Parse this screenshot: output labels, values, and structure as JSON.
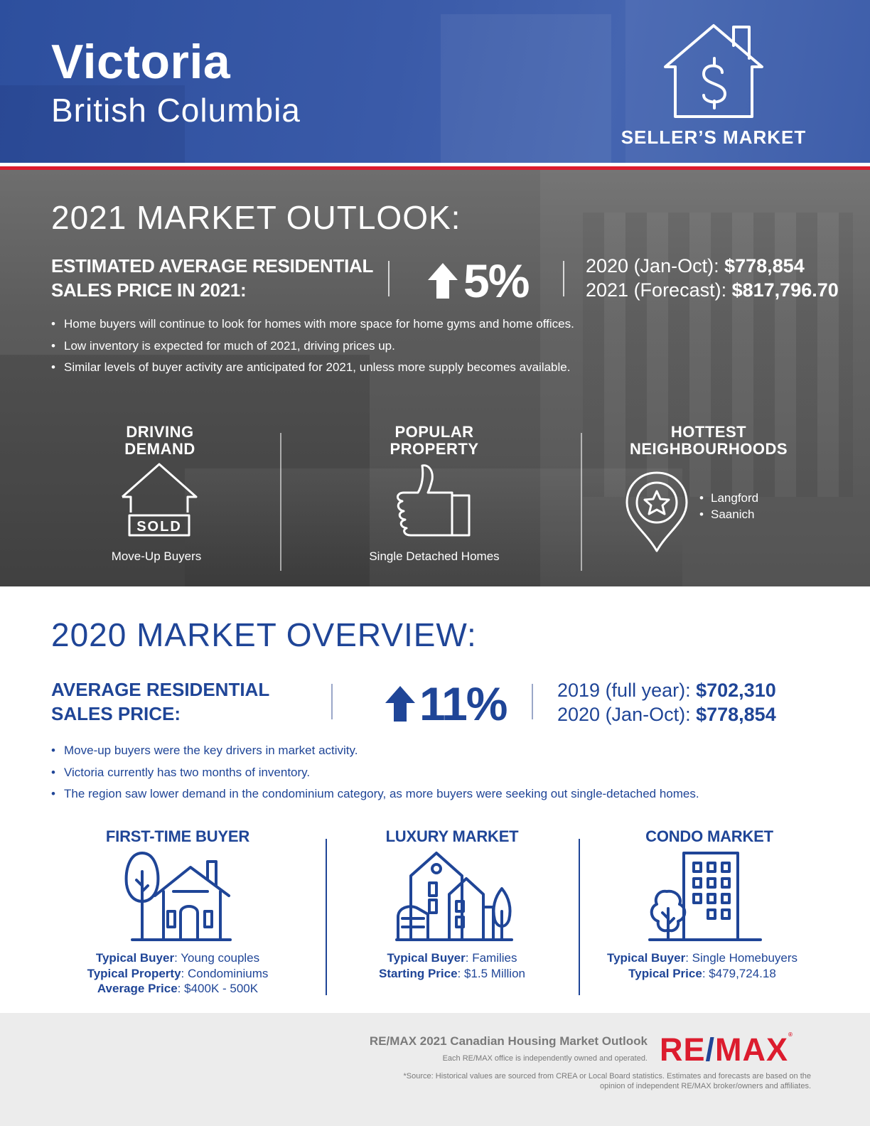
{
  "header": {
    "city": "Victoria",
    "province": "British Columbia",
    "market_type": "SELLER’S MARKET",
    "market_icon": "house-dollar-icon"
  },
  "outlook": {
    "heading": "2021 MARKET OUTLOOK:",
    "price_label": "ESTIMATED AVERAGE RESIDENTIAL SALES PRICE IN 2021:",
    "change": "5%",
    "change_icon": "arrow-up-icon",
    "line1_label": "2020 (Jan-Oct):",
    "line1_value": "$778,854",
    "line2_label": "2021 (Forecast):",
    "line2_value": "$817,796.70",
    "bullets": [
      "Home buyers will continue to look for homes with more space for home gyms and home offices.",
      "Low inventory is expected for much of 2021, driving prices up.",
      "Similar levels of buyer activity are anticipated for 2021, unless more supply becomes available."
    ],
    "columns": {
      "driving": {
        "title_line1": "DRIVING",
        "title_line2": "DEMAND",
        "sold_text": "SOLD",
        "caption": "Move-Up Buyers",
        "icon": "sold-house-icon"
      },
      "popular": {
        "title_line1": "POPULAR",
        "title_line2": "PROPERTY",
        "caption": "Single Detached Homes",
        "icon": "thumbs-up-icon"
      },
      "hottest": {
        "title_line1": "HOTTEST",
        "title_line2": "NEIGHBOURHOODS",
        "items": [
          "Langford",
          "Saanich"
        ],
        "icon": "star-pin-icon"
      }
    }
  },
  "overview": {
    "heading": "2020 MARKET OVERVIEW:",
    "price_label": "AVERAGE RESIDENTIAL SALES PRICE:",
    "change": "11%",
    "change_icon": "arrow-up-icon",
    "line1_label": "2019 (full year):",
    "line1_value": "$702,310",
    "line2_label": "2020 (Jan-Oct):",
    "line2_value": "$778,854",
    "bullets": [
      "Move-up buyers were the key drivers in market activity.",
      "Victoria currently has two months of inventory.",
      "The region saw lower demand in the condominium category, as more buyers were seeking out single-detached homes."
    ],
    "segments": {
      "first_time": {
        "title": "FIRST-TIME BUYER",
        "icon": "house-tree-icon",
        "rows": [
          {
            "label": "Typical Buyer",
            "value": "Young couples"
          },
          {
            "label": "Typical Property",
            "value": "Condominiums"
          },
          {
            "label": "Average Price",
            "value": "$400K - 500K"
          }
        ]
      },
      "luxury": {
        "title": "LUXURY MARKET",
        "icon": "luxury-home-icon",
        "rows": [
          {
            "label": "Typical Buyer",
            "value": "Families"
          },
          {
            "label": "Starting Price",
            "value": "$1.5 Million"
          }
        ]
      },
      "condo": {
        "title": "CONDO MARKET",
        "icon": "condo-building-icon",
        "rows": [
          {
            "label": "Typical Buyer",
            "value": "Single Homebuyers"
          },
          {
            "label": "Typical Price",
            "value": "$479,724.18"
          }
        ]
      }
    }
  },
  "footer": {
    "title": "RE/MAX 2021 Canadian Housing Market Outlook",
    "independent": "Each RE/MAX office is independently owned and operated.",
    "source": "*Source: Historical values are sourced from CREA or Local Board statistics. Estimates and forecasts are based on the opinion of independent RE/MAX broker/owners and affiliates.",
    "logo_part1": "RE",
    "logo_slash": "/",
    "logo_part2": "MAX",
    "logo_mark": "®",
    "colors": {
      "red": "#dc1c2e",
      "blue": "#1f4597"
    }
  }
}
